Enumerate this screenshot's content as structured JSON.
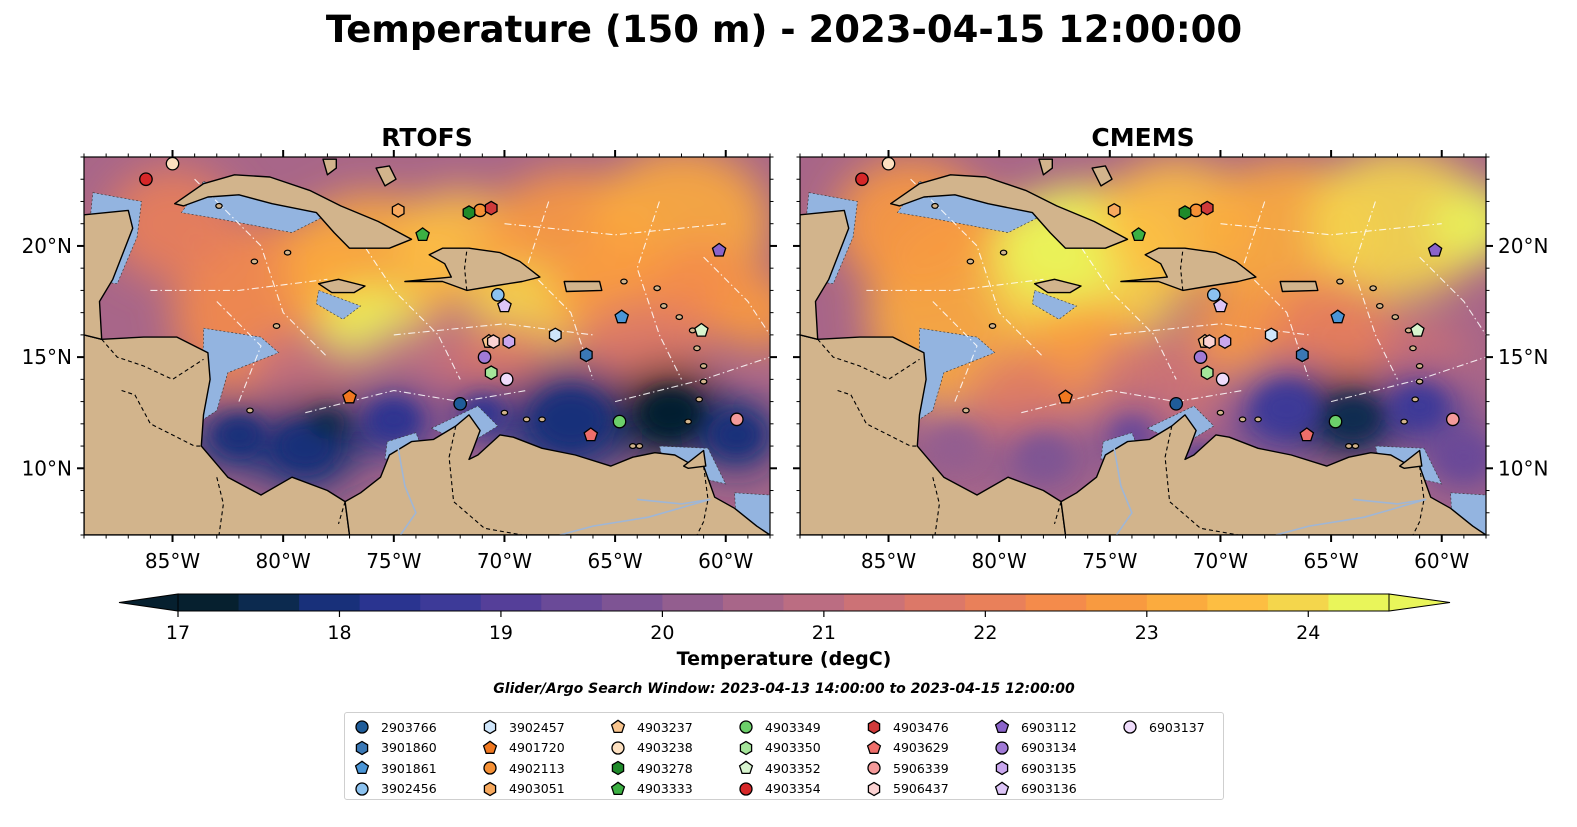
{
  "figure": {
    "title": "Temperature (150 m) - 2023-04-15 12:00:00",
    "panels": [
      {
        "title": "RTOFS",
        "field": "rtofs"
      },
      {
        "title": "CMEMS",
        "field": "cmems"
      }
    ],
    "lon_ticks": [
      "85°W",
      "80°W",
      "75°W",
      "70°W",
      "65°W",
      "60°W"
    ],
    "lat_ticks": [
      "20°N",
      "15°N",
      "10°N"
    ],
    "colorbar": {
      "label": "Temperature (degC)",
      "ticks": [
        "17",
        "18",
        "19",
        "20",
        "21",
        "22",
        "23",
        "24"
      ],
      "min": 17,
      "max": 24.5,
      "extend": "both",
      "colors": [
        "#06202f",
        "#0c2a4f",
        "#18307a",
        "#2a3490",
        "#3d3a98",
        "#553f99",
        "#6a4a98",
        "#7e5494",
        "#935e8f",
        "#a86689",
        "#bb6d82",
        "#cc7276",
        "#dc7868",
        "#e9805a",
        "#f48b4b",
        "#f89a40",
        "#fbab3e",
        "#fdbe42",
        "#f4d64c",
        "#e9f55a"
      ]
    },
    "search_window": "Glider/Argo Search Window: 2023-04-13 14:00:00 to 2023-04-15 12:00:00",
    "map": {
      "lon_range": [
        -89,
        -58
      ],
      "lat_range": [
        7,
        24
      ],
      "land_color": "#d2b48c",
      "shelf_color": "#93b4e0",
      "coastline_color": "#000000"
    }
  },
  "legend": [
    {
      "id": "2903766",
      "marker": "circle",
      "color": "#1f5c99",
      "lon": -72.0,
      "lat": 12.9
    },
    {
      "id": "3901860",
      "marker": "hexagon",
      "color": "#3a78b5",
      "lon": -66.3,
      "lat": 15.1
    },
    {
      "id": "3901861",
      "marker": "pentagon",
      "color": "#4a95d6",
      "lon": -64.7,
      "lat": 16.8
    },
    {
      "id": "3902456",
      "marker": "circle",
      "color": "#8cc2ef",
      "lon": -70.3,
      "lat": 17.8
    },
    {
      "id": "3902457",
      "marker": "hexagon",
      "color": "#cfe6fb",
      "lon": -67.7,
      "lat": 16.0
    },
    {
      "id": "4901720",
      "marker": "pentagon",
      "color": "#f07820",
      "lon": -77.0,
      "lat": 13.2
    },
    {
      "id": "4902113",
      "marker": "circle",
      "color": "#f59035",
      "lon": -71.1,
      "lat": 21.6
    },
    {
      "id": "4903051",
      "marker": "hexagon",
      "color": "#f7a95e",
      "lon": -74.8,
      "lat": 21.6
    },
    {
      "id": "4903237",
      "marker": "pentagon",
      "color": "#f9c58e",
      "lon": -70.7,
      "lat": 15.7
    },
    {
      "id": "4903238",
      "marker": "circle",
      "color": "#fde0c0",
      "lon": -85.0,
      "lat": 23.7
    },
    {
      "id": "4903278",
      "marker": "hexagon",
      "color": "#1f8a2a",
      "lon": -71.6,
      "lat": 21.5
    },
    {
      "id": "4903333",
      "marker": "pentagon",
      "color": "#3cb043",
      "lon": -73.7,
      "lat": 20.5
    },
    {
      "id": "4903349",
      "marker": "circle",
      "color": "#6ccf6a",
      "lon": -64.8,
      "lat": 12.1
    },
    {
      "id": "4903350",
      "marker": "hexagon",
      "color": "#a5e59a",
      "lon": -70.6,
      "lat": 14.3
    },
    {
      "id": "4903352",
      "marker": "pentagon",
      "color": "#d8f5cf",
      "lon": -61.1,
      "lat": 16.2
    },
    {
      "id": "4903354",
      "marker": "circle",
      "color": "#d62728",
      "lon": -86.2,
      "lat": 23.0
    },
    {
      "id": "4903476",
      "marker": "hexagon",
      "color": "#cf3a3a",
      "lon": -70.6,
      "lat": 21.7
    },
    {
      "id": "4903629",
      "marker": "pentagon",
      "color": "#ef6e6a",
      "lon": -66.1,
      "lat": 11.5
    },
    {
      "id": "5906339",
      "marker": "circle",
      "color": "#f49a9a",
      "lon": -59.5,
      "lat": 12.2
    },
    {
      "id": "5906437",
      "marker": "hexagon",
      "color": "#fbd2d2",
      "lon": -70.5,
      "lat": 15.7
    },
    {
      "id": "6903112",
      "marker": "pentagon",
      "color": "#8a63c9",
      "lon": -60.3,
      "lat": 19.8
    },
    {
      "id": "6903134",
      "marker": "circle",
      "color": "#a07ad6",
      "lon": -70.9,
      "lat": 15.0
    },
    {
      "id": "6903135",
      "marker": "hexagon",
      "color": "#c9a7ee",
      "lon": -69.8,
      "lat": 15.7
    },
    {
      "id": "6903136",
      "marker": "pentagon",
      "color": "#ddc5f7",
      "lon": -70.0,
      "lat": 17.3
    },
    {
      "id": "6903137",
      "marker": "circle",
      "color": "#efdcfb",
      "lon": -69.9,
      "lat": 14.0
    }
  ]
}
